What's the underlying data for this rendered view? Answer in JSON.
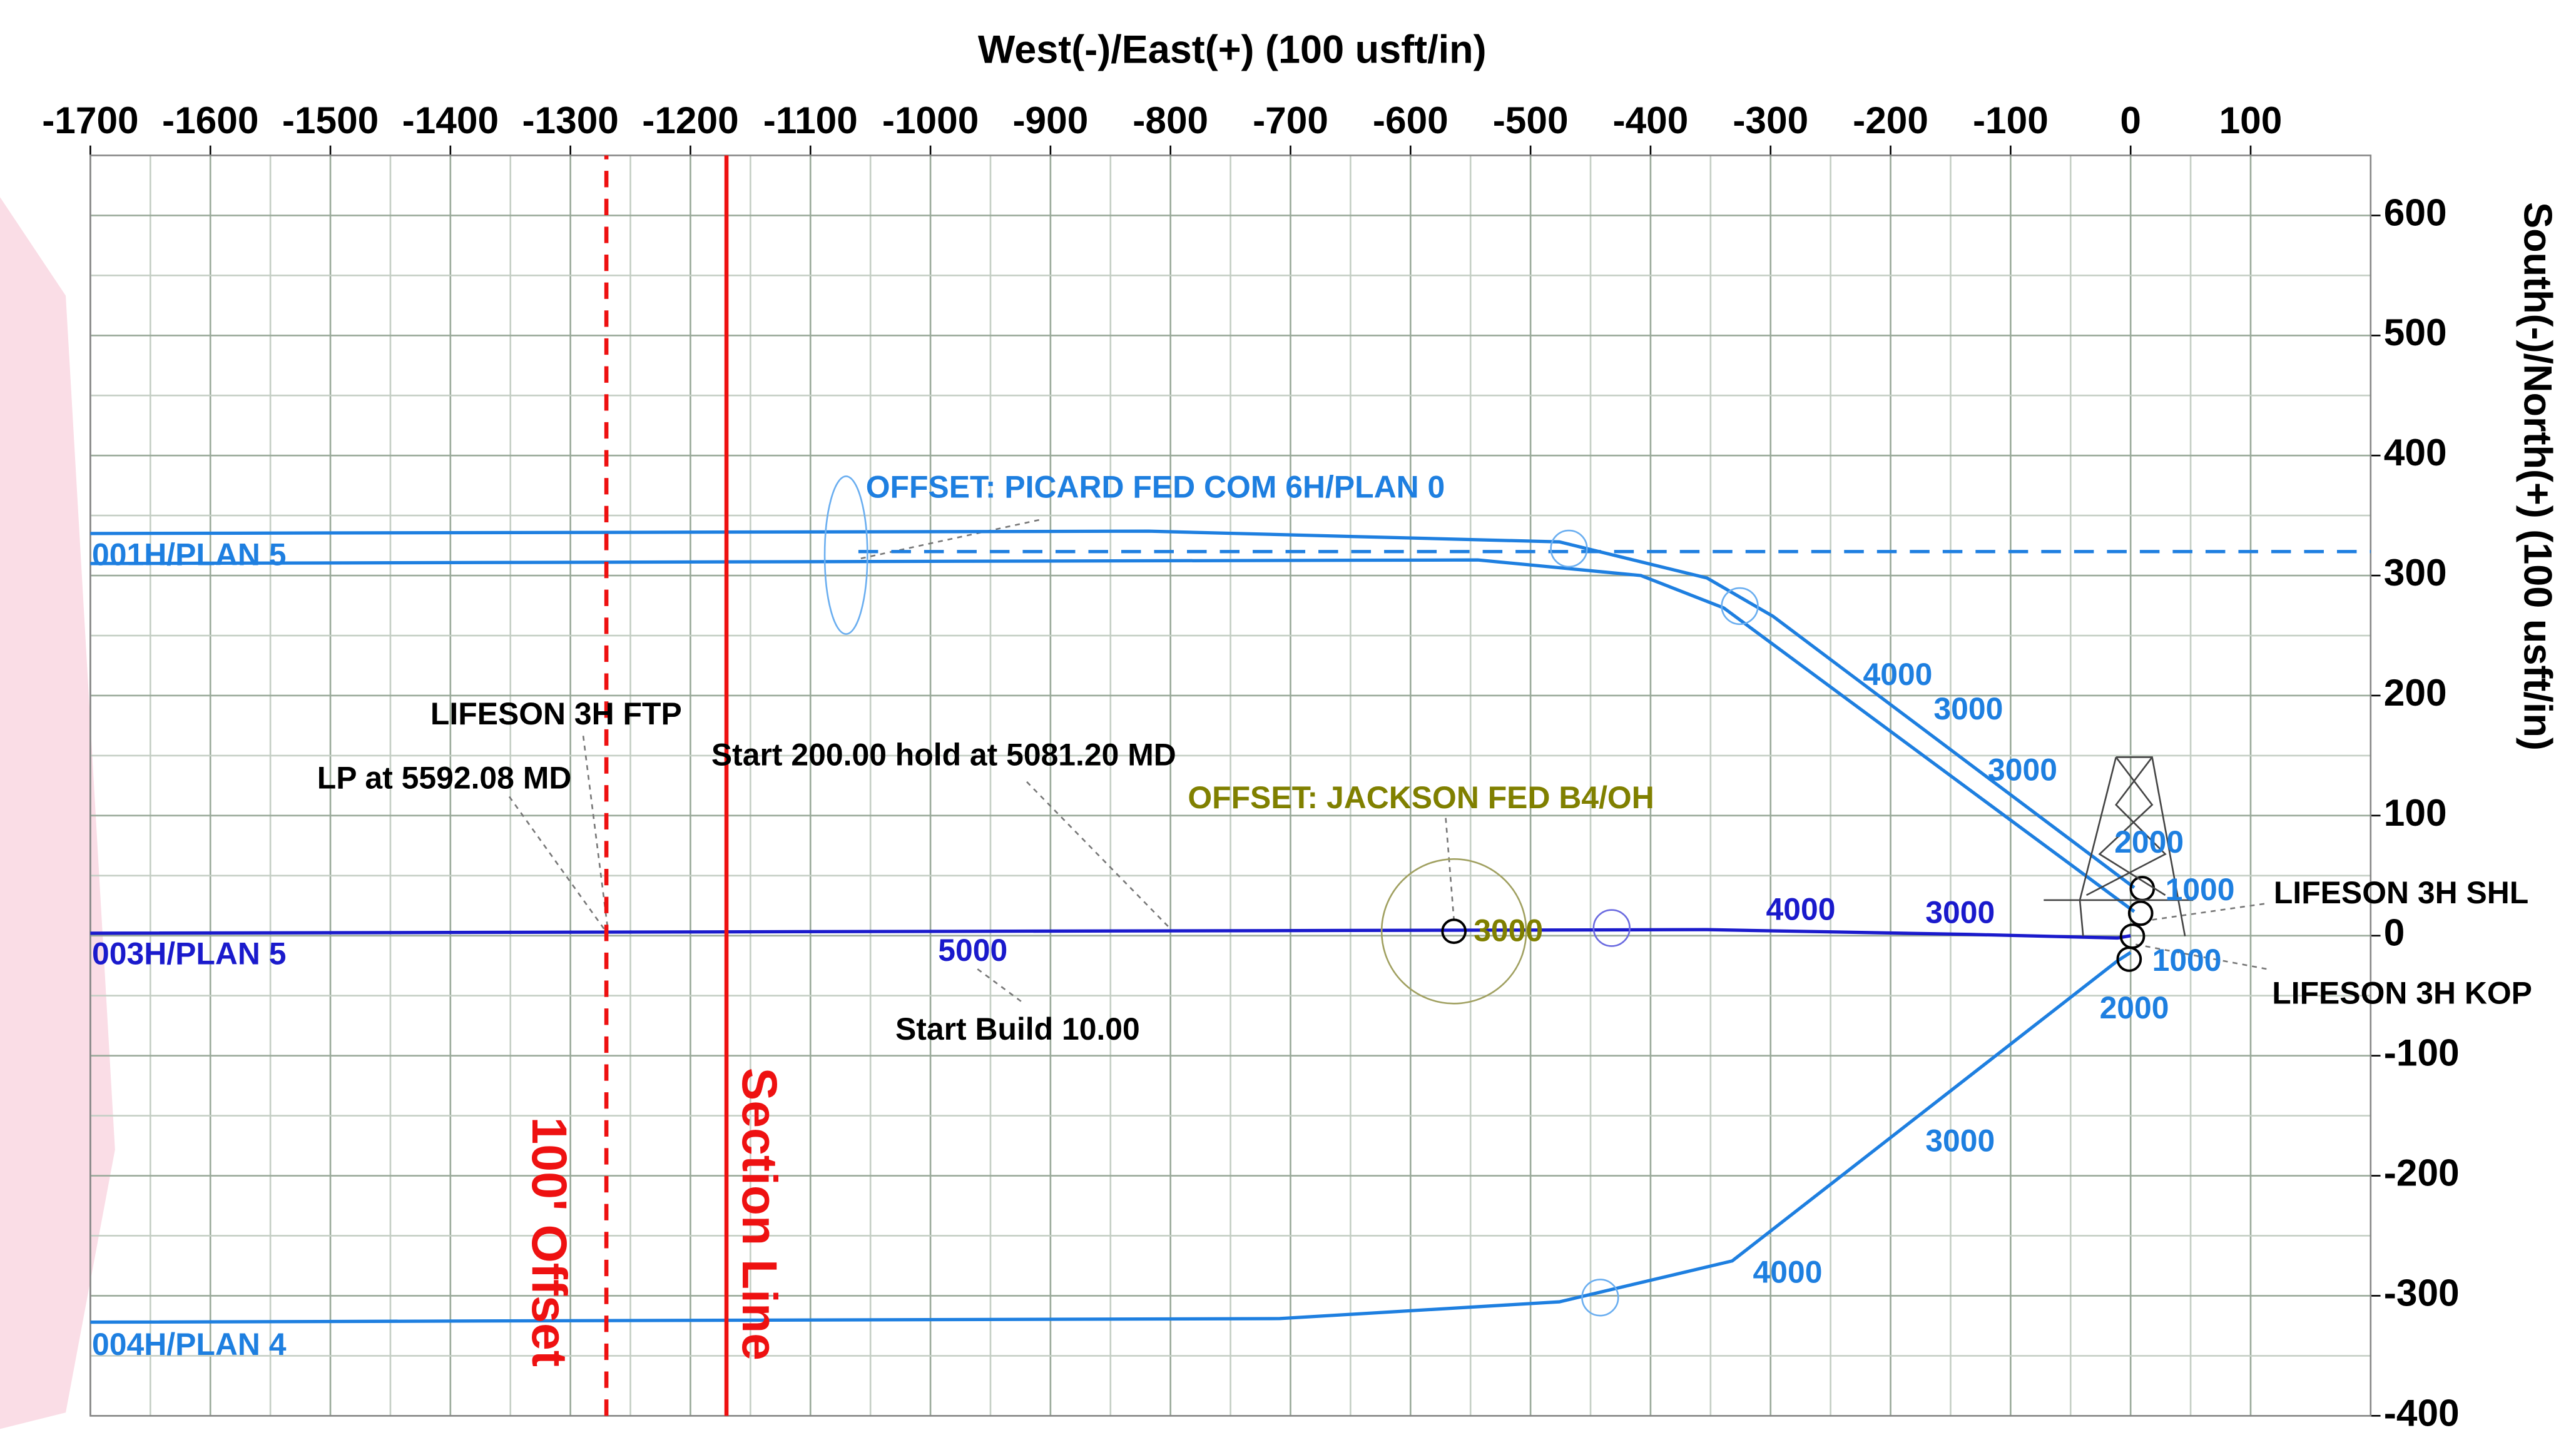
{
  "chart_data": {
    "type": "line",
    "title": "West(-)/East(+) (100 usft/in)",
    "y_label": "South(-)/North(+) (100 usft/in)",
    "xlim": [
      -1700,
      200
    ],
    "ylim": [
      -400,
      650
    ],
    "xticks": [
      -1700,
      -1600,
      -1500,
      -1400,
      -1300,
      -1200,
      -1100,
      -1000,
      -900,
      -800,
      -700,
      -600,
      -500,
      -400,
      -300,
      -200,
      -100,
      0,
      100
    ],
    "yticks": [
      -400,
      -300,
      -200,
      -100,
      0,
      100,
      200,
      300,
      400,
      500,
      600
    ],
    "grid": true,
    "series": [
      {
        "name": "001H/PLAN 5",
        "color": "#1e7fe0",
        "dash": false,
        "x": [
          -1700,
          -818,
          -476,
          -353,
          -298,
          3
        ],
        "values": [
          335,
          337,
          328,
          298,
          266,
          40
        ]
      },
      {
        "color": "#1e7fe0",
        "dash": false,
        "x": [
          -1700,
          -544,
          -408,
          -339,
          3
        ],
        "values": [
          310,
          313,
          300,
          273,
          20
        ]
      },
      {
        "name": "OFFSET: PICARD FED COM 6H/PLAN 0",
        "color": "#1e7fe0",
        "dash": true,
        "x": [
          -1060,
          200
        ],
        "values": [
          320,
          320
        ]
      },
      {
        "name": "003H/PLAN 5",
        "color": "#1a1acc",
        "dash": false,
        "x": [
          -1700,
          -353,
          -134,
          -11,
          0
        ],
        "values": [
          2,
          5,
          1,
          -2,
          0
        ]
      },
      {
        "name": "004H/PLAN 4",
        "color": "#1e7fe0",
        "dash": false,
        "x": [
          -1700,
          -709,
          -476,
          -332,
          -11,
          0
        ],
        "values": [
          -322,
          -319,
          -305,
          -271,
          -21,
          -14
        ]
      },
      {
        "name": "Section Line",
        "color": "#ee1111",
        "dash": false,
        "x": [
          -1170,
          -1170
        ],
        "values": [
          -400,
          650
        ]
      },
      {
        "name": "100' Offset",
        "color": "#ee1111",
        "dash": true,
        "x": [
          -1270,
          -1270
        ],
        "values": [
          -400,
          650
        ]
      }
    ],
    "annotations": [
      {
        "text": "LIFESON 3H FTP",
        "color": "#000000"
      },
      {
        "text": "LP at 5592.08 MD",
        "color": "#000000"
      },
      {
        "text": "Start 200.00 hold at 5081.20 MD",
        "color": "#000000"
      },
      {
        "text": "OFFSET: JACKSON FED B4/OH",
        "color": "#808000"
      },
      {
        "text": "Start Build 10.00",
        "color": "#000000"
      },
      {
        "text": "LIFESON 3H SHL",
        "color": "#000000"
      },
      {
        "text": "LIFESON 3H KOP",
        "color": "#000000"
      },
      {
        "text": "4000",
        "color": "#1e7fe0"
      },
      {
        "text": "3000",
        "color": "#1e7fe0"
      },
      {
        "text": "3000",
        "color": "#1e7fe0"
      },
      {
        "text": "2000",
        "color": "#1e7fe0"
      },
      {
        "text": "1000",
        "color": "#1e7fe0"
      },
      {
        "text": "1000",
        "color": "#1e7fe0"
      },
      {
        "text": "2000",
        "color": "#1e7fe0"
      },
      {
        "text": "3000",
        "color": "#1e7fe0"
      },
      {
        "text": "4000",
        "color": "#1e7fe0"
      },
      {
        "text": "4000",
        "color": "#1a1acc"
      },
      {
        "text": "3000",
        "color": "#1a1acc"
      },
      {
        "text": "5000",
        "color": "#1a1acc"
      },
      {
        "text": "3000",
        "color": "#808000"
      }
    ]
  }
}
